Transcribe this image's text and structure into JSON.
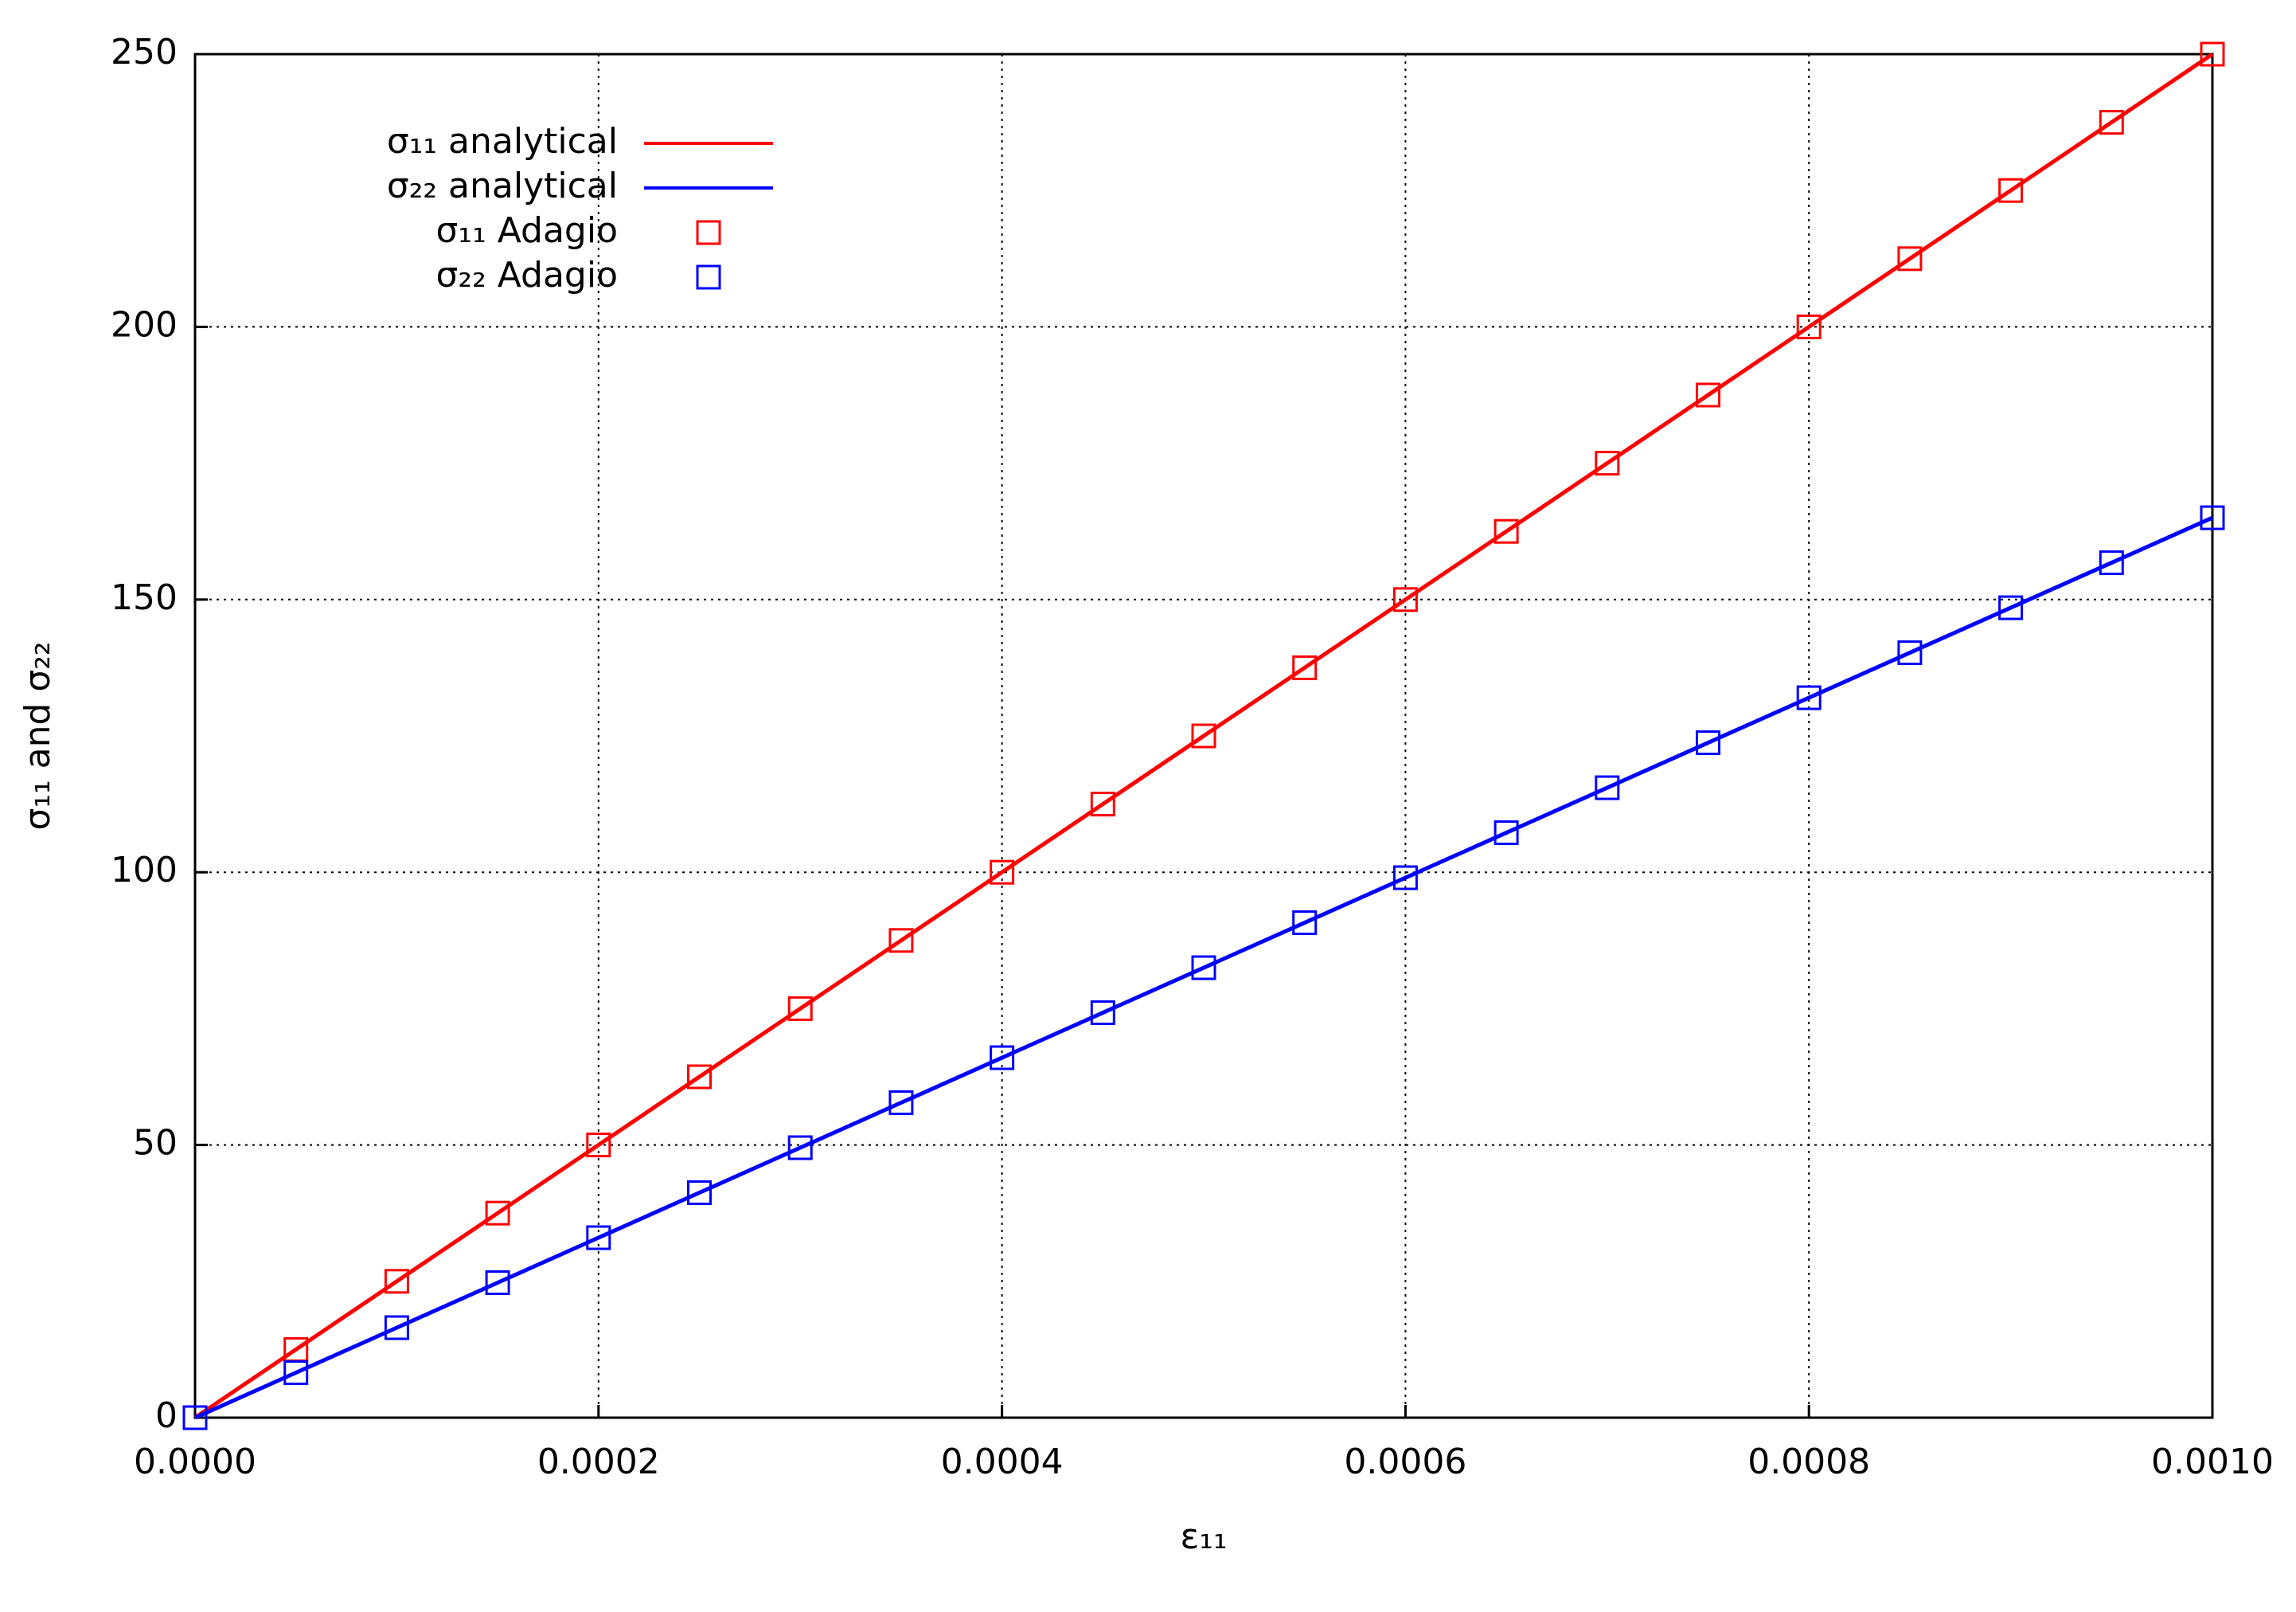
{
  "chart_data": {
    "type": "line",
    "xlabel": "ε₁₁",
    "ylabel": "σ₁₁ and σ₂₂",
    "x": [
      0,
      5e-05,
      0.0001,
      0.00015,
      0.0002,
      0.00025,
      0.0003,
      0.00035,
      0.0004,
      0.00045,
      0.0005,
      0.00055,
      0.0006,
      0.00065,
      0.0007,
      0.00075,
      0.0008,
      0.00085,
      0.0009,
      0.00095,
      0.001
    ],
    "series": [
      {
        "name": "σ₁₁ analytical",
        "color": "#ff0000",
        "style": "line",
        "values": [
          0,
          12.5,
          25,
          37.5,
          50,
          62.5,
          75,
          87.5,
          100,
          112.5,
          125,
          137.5,
          150,
          162.5,
          175,
          187.5,
          200,
          212.5,
          225,
          237.5,
          250
        ]
      },
      {
        "name": "σ₂₂ analytical",
        "color": "#0000ff",
        "style": "line",
        "values": [
          0,
          8.25,
          16.5,
          24.75,
          33,
          41.25,
          49.5,
          57.75,
          66,
          74.25,
          82.5,
          90.75,
          99,
          107.25,
          115.5,
          123.75,
          132,
          140.25,
          148.5,
          156.75,
          165
        ]
      },
      {
        "name": "σ₁₁ Adagio",
        "color": "#ff0000",
        "style": "marker",
        "values": [
          0,
          12.5,
          25,
          37.5,
          50,
          62.5,
          75,
          87.5,
          100,
          112.5,
          125,
          137.5,
          150,
          162.5,
          175,
          187.5,
          200,
          212.5,
          225,
          237.5,
          250
        ]
      },
      {
        "name": "σ₂₂ Adagio",
        "color": "#0000ff",
        "style": "marker",
        "values": [
          0,
          8.25,
          16.5,
          24.75,
          33,
          41.25,
          49.5,
          57.75,
          66,
          74.25,
          82.5,
          90.75,
          99,
          107.25,
          115.5,
          123.75,
          132,
          140.25,
          148.5,
          156.75,
          165
        ]
      }
    ],
    "xlim": [
      0,
      0.001
    ],
    "xticks": [
      {
        "value": 0,
        "label": "0.0000"
      },
      {
        "value": 0.0002,
        "label": "0.0002"
      },
      {
        "value": 0.0004,
        "label": "0.0004"
      },
      {
        "value": 0.0006,
        "label": "0.0006"
      },
      {
        "value": 0.0008,
        "label": "0.0008"
      },
      {
        "value": 0.001,
        "label": "0.0010"
      }
    ],
    "ylim": [
      0,
      250
    ],
    "yticks": [
      0,
      50,
      100,
      150,
      200,
      250
    ],
    "grid": true,
    "legend": "upper-left"
  }
}
